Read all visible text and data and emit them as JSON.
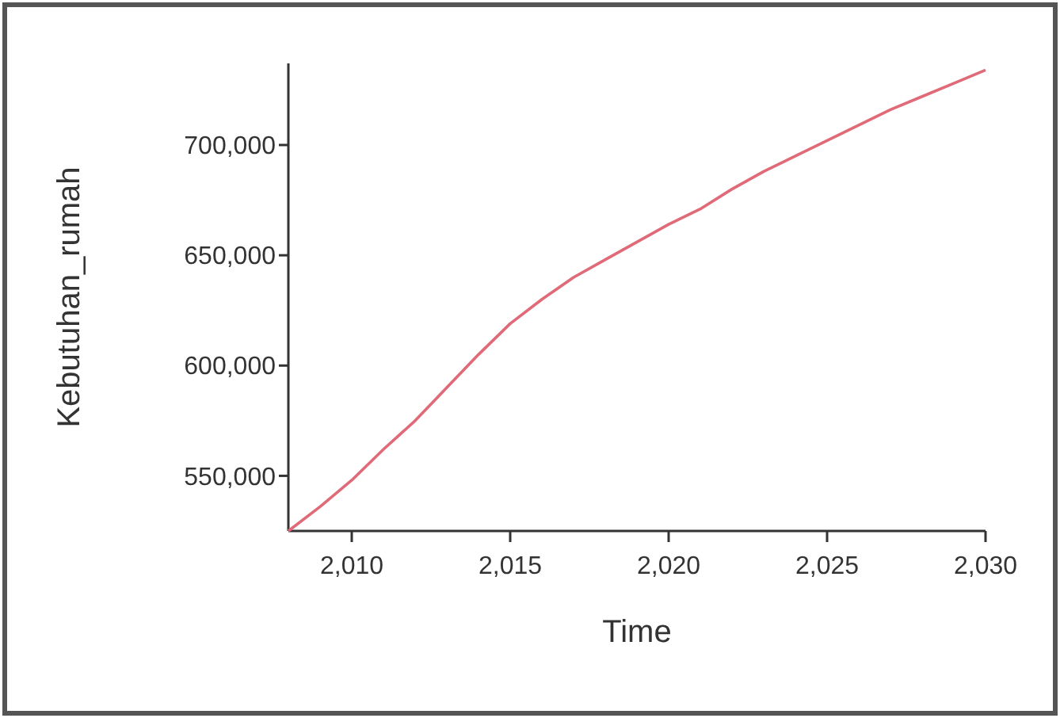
{
  "chart_data": {
    "type": "line",
    "xlabel": "Time",
    "ylabel": "Kebutuhan_rumah",
    "x": [
      2008,
      2009,
      2010,
      2011,
      2012,
      2013,
      2014,
      2015,
      2016,
      2017,
      2018,
      2019,
      2020,
      2021,
      2022,
      2023,
      2024,
      2025,
      2026,
      2027,
      2028,
      2029,
      2030
    ],
    "series": [
      {
        "color": "#e06a78",
        "values": [
          525000,
          536000,
          548000,
          562000,
          575000,
          590000,
          605000,
          619000,
          630000,
          640000,
          648000,
          656000,
          664000,
          671000,
          680000,
          688000,
          695000,
          702000,
          709000,
          716000,
          722000,
          728000,
          734000
        ]
      }
    ],
    "xlim": [
      2008,
      2030
    ],
    "ylim": [
      525000,
      737000
    ],
    "xticks": [
      {
        "value": 2010,
        "label": "2,010"
      },
      {
        "value": 2015,
        "label": "2,015"
      },
      {
        "value": 2020,
        "label": "2,020"
      },
      {
        "value": 2025,
        "label": "2,025"
      },
      {
        "value": 2030,
        "label": "2,030"
      }
    ],
    "yticks": [
      {
        "value": 550000,
        "label": "550,000"
      },
      {
        "value": 600000,
        "label": "600,000"
      },
      {
        "value": 650000,
        "label": "650,000"
      },
      {
        "value": 700000,
        "label": "700,000"
      }
    ],
    "grid": false,
    "marker": "none",
    "line_style": "solid"
  }
}
